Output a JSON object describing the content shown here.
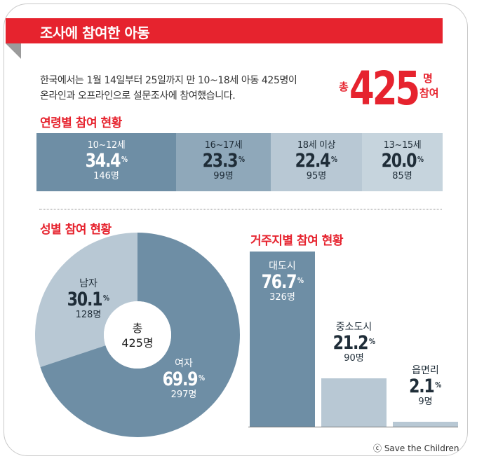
{
  "header": {
    "title": "조사에 참여한 아동"
  },
  "intro": {
    "line1": "한국에서는 1월 14일부터 25일까지 만 10~18세 아동 425명이",
    "line2": "온라인과 오프라인으로 설문조사에 참여했습니다."
  },
  "total": {
    "prefix": "총",
    "value": "425",
    "suffix_top": "명",
    "suffix_bottom": "참여"
  },
  "sections": {
    "age": "연령별 참여 현황",
    "gender": "성별 참여 현황",
    "residence": "거주지별 참여 현황"
  },
  "pct_sign": "%",
  "colors": {
    "accent": "#e6232e",
    "dark": "#6e8ea5",
    "mid": "#8fa8ba",
    "light": "#b8c8d4",
    "lighter": "#c6d4dd"
  },
  "chart_data": [
    {
      "type": "bar",
      "title": "연령별 참여 현황",
      "categories": [
        "10~12세",
        "16~17세",
        "18세 이상",
        "13~15세"
      ],
      "values": [
        34.4,
        23.3,
        22.4,
        20.0
      ],
      "value_labels": [
        "34.4",
        "23.3",
        "22.4",
        "20.0"
      ],
      "counts": [
        "146명",
        "99명",
        "95명",
        "85명"
      ],
      "orientation": "stacked-horizontal"
    },
    {
      "type": "pie",
      "title": "성별 참여 현황",
      "categories": [
        "남자",
        "여자"
      ],
      "values": [
        30.1,
        69.9
      ],
      "value_labels": [
        "30.1",
        "69.9"
      ],
      "counts": [
        "128명",
        "297명"
      ],
      "center_label": [
        "총",
        "425명"
      ]
    },
    {
      "type": "bar",
      "title": "거주지별 참여 현황",
      "categories": [
        "대도시",
        "중소도시",
        "읍면리"
      ],
      "values": [
        76.7,
        21.2,
        2.1
      ],
      "value_labels": [
        "76.7",
        "21.2",
        "2.1"
      ],
      "counts": [
        "326명",
        "90명",
        "9명"
      ]
    }
  ],
  "credit": "ⓒ Save the Children"
}
